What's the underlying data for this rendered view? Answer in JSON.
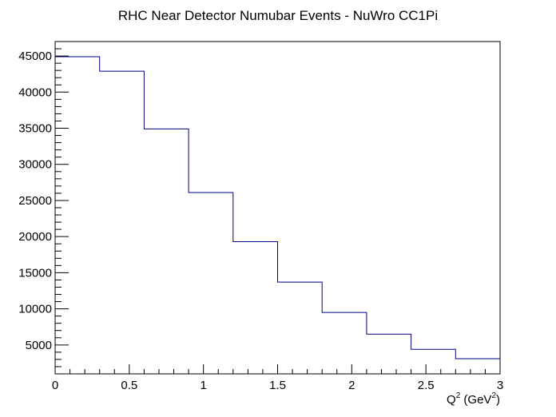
{
  "chart_data": {
    "type": "histogram",
    "title": "RHC Near Detector Numubar Events - NuWro CC1Pi",
    "xlabel": {
      "base": "Q",
      "sup1": "2",
      "mid": " (GeV",
      "sup2": "2",
      "end": ")"
    },
    "ylabel": "",
    "xlim": [
      0,
      3
    ],
    "ylim": [
      1000,
      47000
    ],
    "x_ticks": [
      "0",
      "0.5",
      "1",
      "1.5",
      "2",
      "2.5",
      "3"
    ],
    "y_ticks": [
      "5000",
      "10000",
      "15000",
      "20000",
      "25000",
      "30000",
      "35000",
      "40000",
      "45000"
    ],
    "bin_edges": [
      0,
      0.3,
      0.6,
      0.9,
      1.2,
      1.5,
      1.8,
      2.1,
      2.4,
      2.7,
      3.0
    ],
    "values": [
      44900,
      42900,
      34900,
      26100,
      19300,
      13700,
      9500,
      6500,
      4400,
      3100
    ],
    "line_color": "#000080",
    "grid": false,
    "legend": false
  }
}
